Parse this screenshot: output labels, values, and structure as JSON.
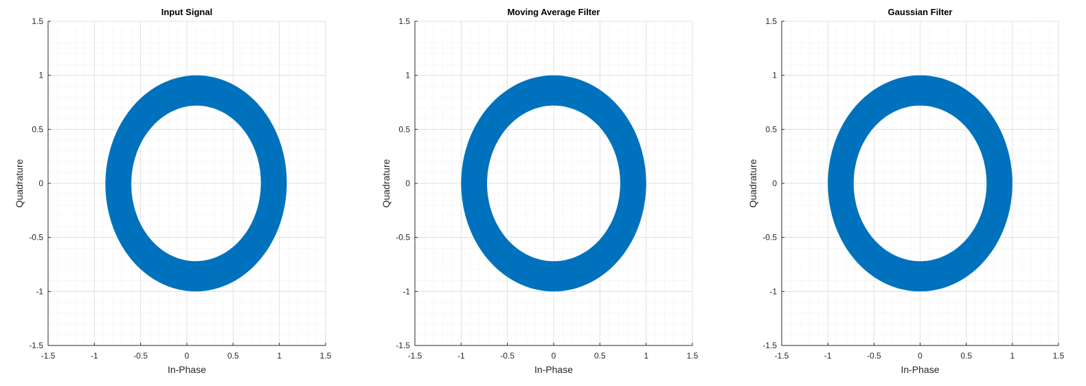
{
  "chart_data": [
    {
      "type": "scatter",
      "title": "Input Signal",
      "xlabel": "In-Phase",
      "ylabel": "Quadrature",
      "xlim": [
        -1.5,
        1.5
      ],
      "ylim": [
        -1.5,
        1.5
      ],
      "xticks": [
        "-1.5",
        "-1",
        "-0.5",
        "0",
        "0.5",
        "1",
        "1.5"
      ],
      "yticks": [
        "-1.5",
        "-1",
        "-0.5",
        "0",
        "0.5",
        "1",
        "1.5"
      ],
      "grid": true,
      "minor_grid": true,
      "color": "#0072BD",
      "ring": {
        "center": [
          0.1,
          0.0
        ],
        "outer_radius": [
          0.98,
          1.0
        ],
        "inner_radius": [
          0.7,
          0.72
        ],
        "rotation_deg": -8
      }
    },
    {
      "type": "scatter",
      "title": "Moving Average Filter",
      "xlabel": "In-Phase",
      "ylabel": "Quadrature",
      "xlim": [
        -1.5,
        1.5
      ],
      "ylim": [
        -1.5,
        1.5
      ],
      "xticks": [
        "-1.5",
        "-1",
        "-0.5",
        "0",
        "0.5",
        "1",
        "1.5"
      ],
      "yticks": [
        "-1.5",
        "-1",
        "-0.5",
        "0",
        "0.5",
        "1",
        "1.5"
      ],
      "grid": true,
      "minor_grid": true,
      "color": "#0072BD",
      "ring": {
        "center": [
          0.0,
          0.0
        ],
        "outer_radius": [
          1.0,
          1.0
        ],
        "inner_radius": [
          0.72,
          0.72
        ],
        "rotation_deg": 0
      }
    },
    {
      "type": "scatter",
      "title": "Gaussian Filter",
      "xlabel": "In-Phase",
      "ylabel": "Quadrature",
      "xlim": [
        -1.5,
        1.5
      ],
      "ylim": [
        -1.5,
        1.5
      ],
      "xticks": [
        "-1.5",
        "-1",
        "-0.5",
        "0",
        "0.5",
        "1",
        "1.5"
      ],
      "yticks": [
        "-1.5",
        "-1",
        "-0.5",
        "0",
        "0.5",
        "1",
        "1.5"
      ],
      "grid": true,
      "minor_grid": true,
      "color": "#0072BD",
      "ring": {
        "center": [
          0.0,
          0.0
        ],
        "outer_radius": [
          1.0,
          1.0
        ],
        "inner_radius": [
          0.72,
          0.72
        ],
        "rotation_deg": 0
      }
    }
  ]
}
